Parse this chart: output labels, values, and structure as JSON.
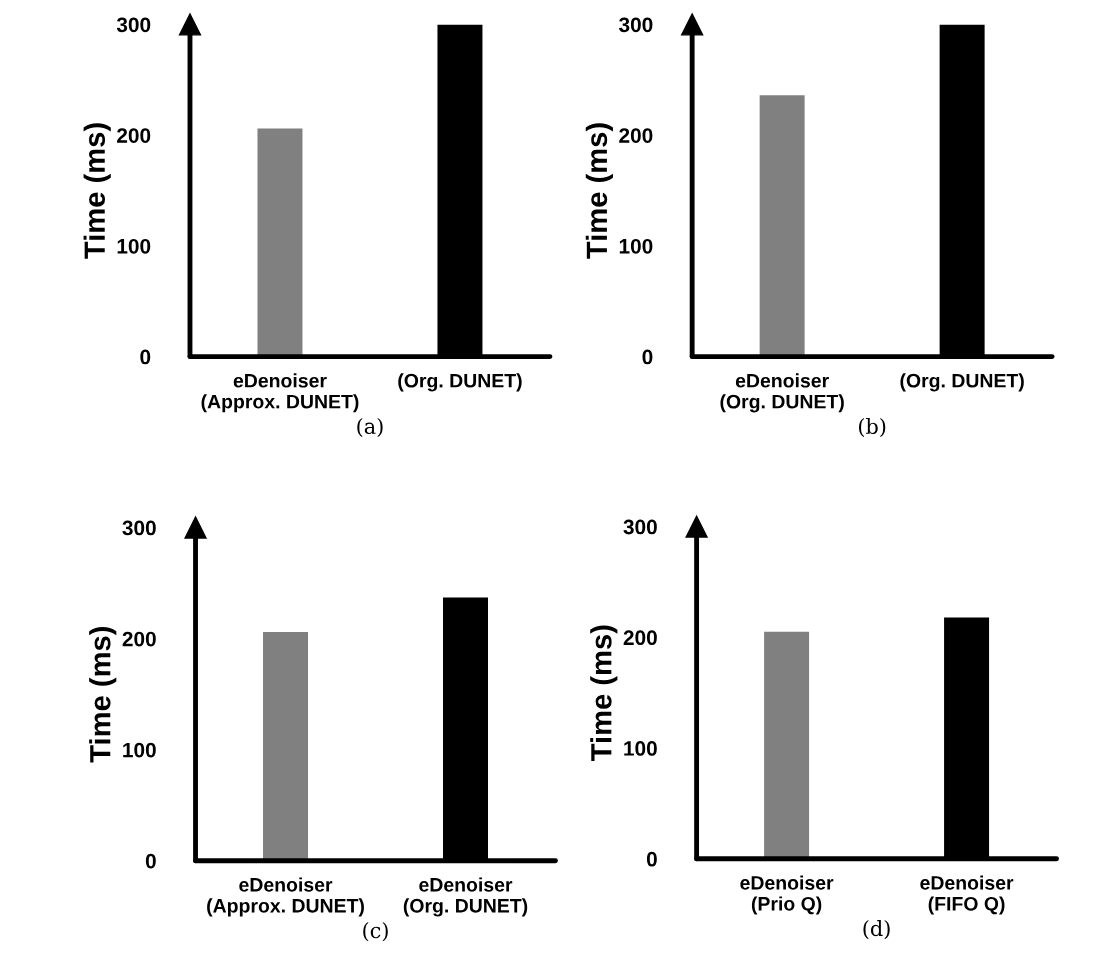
{
  "chart_data": [
    {
      "type": "bar",
      "xlabel": "(a)",
      "ylabel": "Time (ms)",
      "categories": [
        "eDenoiser\n(Approx. DUNET)",
        "(Org. DUNET)"
      ],
      "values": [
        206,
        300
      ],
      "colors": [
        "#808080",
        "#000000"
      ],
      "ylim": [
        0,
        300
      ],
      "yticks": [
        0,
        100,
        200,
        300
      ],
      "grid": false,
      "legend": false
    },
    {
      "type": "bar",
      "xlabel": "(b)",
      "ylabel": "Time (ms)",
      "categories": [
        "eDenoiser\n(Org. DUNET)",
        "(Org. DUNET)"
      ],
      "values": [
        236,
        300
      ],
      "colors": [
        "#808080",
        "#000000"
      ],
      "ylim": [
        0,
        300
      ],
      "yticks": [
        0,
        100,
        200,
        300
      ],
      "grid": false,
      "legend": false
    },
    {
      "type": "bar",
      "xlabel": "(c)",
      "ylabel": "Time (ms)",
      "categories": [
        "eDenoiser\n(Approx. DUNET)",
        "eDenoiser\n(Org. DUNET)"
      ],
      "values": [
        206,
        237
      ],
      "colors": [
        "#808080",
        "#000000"
      ],
      "ylim": [
        0,
        300
      ],
      "yticks": [
        0,
        100,
        200,
        300
      ],
      "grid": false,
      "legend": false
    },
    {
      "type": "bar",
      "xlabel": "(d)",
      "ylabel": "Time (ms)",
      "categories": [
        "eDenoiser\n(Prio Q)",
        "eDenoiser\n(FIFO Q)"
      ],
      "values": [
        205,
        218
      ],
      "colors": [
        "#808080",
        "#000000"
      ],
      "ylim": [
        0,
        300
      ],
      "yticks": [
        0,
        100,
        200,
        300
      ],
      "grid": false,
      "legend": false
    }
  ]
}
